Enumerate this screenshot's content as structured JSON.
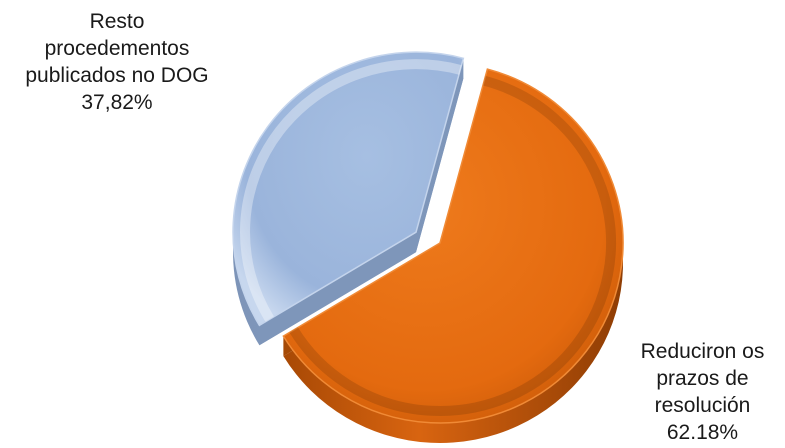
{
  "chart_data": {
    "type": "pie",
    "style": "3d-exploded",
    "slices": [
      {
        "name_lines": [
          "Resto",
          "procedementos",
          "publicados no DOG"
        ],
        "value_label": "37,82%",
        "value": 37.82,
        "color": "#9db8df",
        "exploded": true
      },
      {
        "name_lines": [
          "Reduciron os",
          "prazos de",
          "resolución"
        ],
        "value_label": "62.18%",
        "value": 62.18,
        "color": "#e66c10",
        "exploded": false
      }
    ],
    "legend": "none"
  }
}
